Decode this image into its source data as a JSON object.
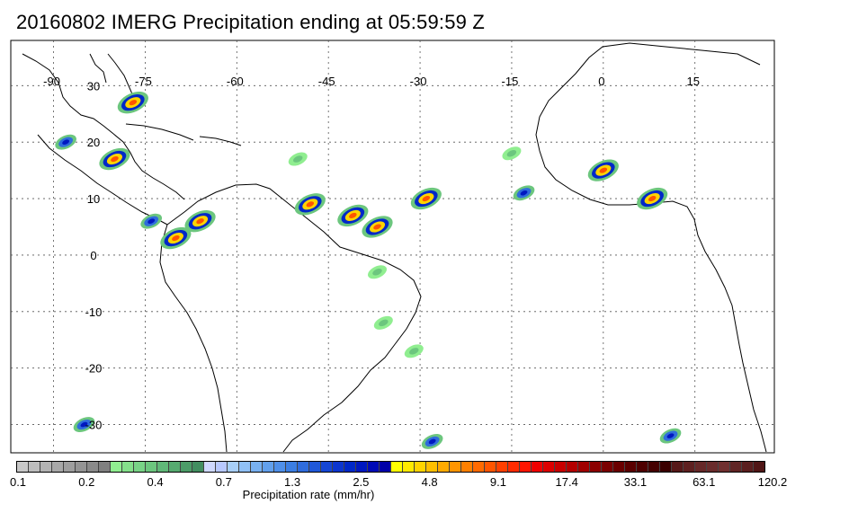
{
  "title": "20160802 IMERG Precipitation ending at 05:59:59 Z",
  "map": {
    "lon_labels": [
      "-90",
      "-75",
      "-60",
      "-45",
      "-30",
      "-15",
      "0",
      "15"
    ],
    "lat_labels": [
      "30",
      "20",
      "10",
      "0",
      "-10",
      "-20",
      "-30"
    ],
    "grid": true,
    "background_color": "#ffffff",
    "coast_color": "#000000"
  },
  "colorbar": {
    "title": "Precipitation rate (mm/hr)",
    "tick_labels": [
      "0.1",
      "0.2",
      "0.4",
      "0.7",
      "1.3",
      "2.5",
      "4.8",
      "9.1",
      "17.4",
      "33.1",
      "63.1",
      "120.2"
    ],
    "colors": [
      "#c8c8c8",
      "#bdbdbd",
      "#b3b3b3",
      "#a8a8a8",
      "#9e9e9e",
      "#949494",
      "#8a8a8a",
      "#808080",
      "#90ee90",
      "#84e08a",
      "#78d386",
      "#6cc67e",
      "#60b878",
      "#56aa70",
      "#4c9c68",
      "#428e60",
      "#cfd8ff",
      "#b8c8ff",
      "#a8cff8",
      "#90c0f5",
      "#78b0f0",
      "#62a0ec",
      "#4f8fe8",
      "#3c7ee2",
      "#2f6cdc",
      "#2058d8",
      "#1546d4",
      "#0c36cf",
      "#0028c8",
      "#0018c0",
      "#000ab6",
      "#0000a8",
      "#ffff00",
      "#ffea00",
      "#ffd400",
      "#ffbf00",
      "#ffaa00",
      "#ff9500",
      "#ff8000",
      "#ff6a00",
      "#ff5500",
      "#ff4000",
      "#ff2b00",
      "#ff1500",
      "#f00000",
      "#dc0000",
      "#c80000",
      "#b40000",
      "#a00000",
      "#8c0000",
      "#7a0000",
      "#6a0000",
      "#5a0000",
      "#4e0000",
      "#440000",
      "#3a0000",
      "#561818",
      "#5e2020",
      "#662828",
      "#6a2c2c",
      "#703030",
      "#602424",
      "#5a1e1e",
      "#501616"
    ]
  },
  "precip_cells": [
    {
      "lon": -77,
      "lat": 27,
      "level": "heavy"
    },
    {
      "lon": -80,
      "lat": 17,
      "level": "heavy"
    },
    {
      "lon": -66,
      "lat": 6,
      "level": "heavy"
    },
    {
      "lon": -70,
      "lat": 3,
      "level": "heavy"
    },
    {
      "lon": -48,
      "lat": 9,
      "level": "heavy"
    },
    {
      "lon": -41,
      "lat": 7,
      "level": "heavy"
    },
    {
      "lon": -37,
      "lat": 5,
      "level": "heavy"
    },
    {
      "lon": -29,
      "lat": 10,
      "level": "heavy"
    },
    {
      "lon": 0,
      "lat": 15,
      "level": "heavy"
    },
    {
      "lon": 8,
      "lat": 10,
      "level": "heavy"
    },
    {
      "lon": -74,
      "lat": 6,
      "level": "moderate"
    },
    {
      "lon": -88,
      "lat": 20,
      "level": "moderate"
    },
    {
      "lon": -13,
      "lat": 11,
      "level": "moderate"
    },
    {
      "lon": -36,
      "lat": -12,
      "level": "light"
    },
    {
      "lon": -31,
      "lat": -17,
      "level": "light"
    },
    {
      "lon": -37,
      "lat": -3,
      "level": "light"
    },
    {
      "lon": -85,
      "lat": -30,
      "level": "moderate"
    },
    {
      "lon": -28,
      "lat": -33,
      "level": "moderate"
    },
    {
      "lon": 11,
      "lat": -32,
      "level": "moderate"
    },
    {
      "lon": -50,
      "lat": 17,
      "level": "light"
    },
    {
      "lon": -15,
      "lat": 18,
      "level": "light"
    }
  ]
}
